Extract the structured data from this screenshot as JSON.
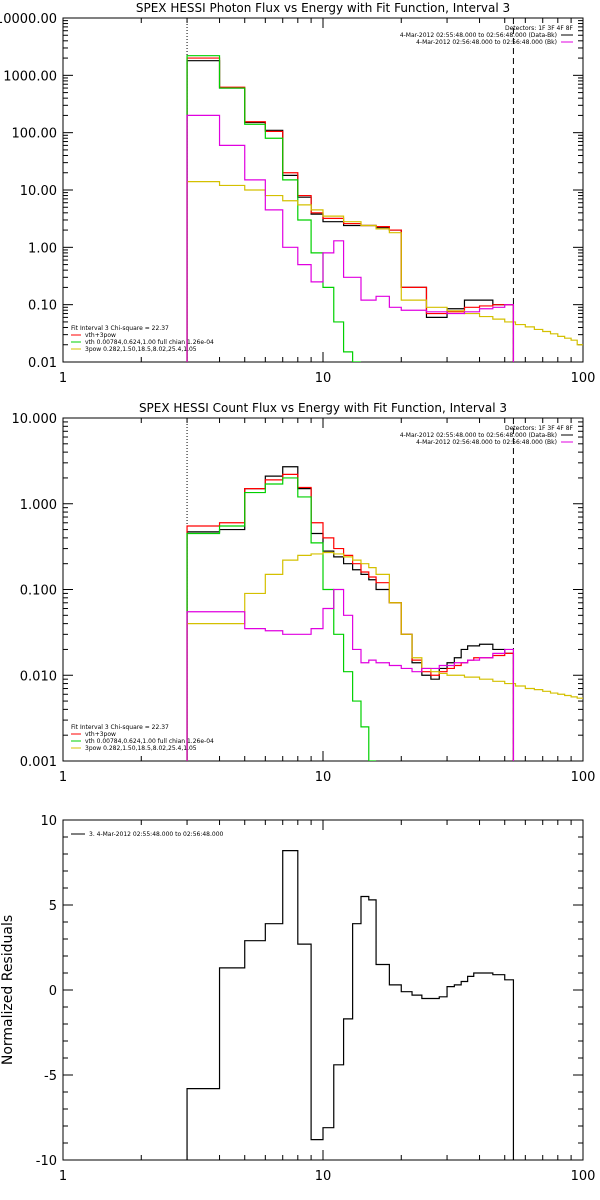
{
  "chart_data": [
    {
      "type": "line",
      "title": "SPEX HESSI Photon Flux vs Energy with Fit Function, Interval 3",
      "xlabel": "",
      "ylabel": "",
      "xscale": "log",
      "yscale": "log",
      "xlim": [
        1,
        100
      ],
      "ylim": [
        0.01,
        10000
      ],
      "xticks": [
        1,
        10,
        100
      ],
      "xtick_labels": [
        "1",
        "10",
        "100"
      ],
      "yticks": [
        0.01,
        0.1,
        1,
        10,
        100,
        1000,
        10000
      ],
      "ytick_labels": [
        "0.01",
        "0.10",
        "1.00",
        "10.00",
        "100.00",
        "1000.00",
        "10000.00"
      ],
      "grid": false,
      "vlines": [
        {
          "x": 3,
          "style": "dotted"
        },
        {
          "x": 54,
          "style": "dashed"
        }
      ],
      "legend_top_right": [
        "Detectors: 1F 3F 4F 8F",
        "4-Mar-2012 02:55:48.000 to 02:56:48.000 (Data-Bk)",
        "4-Mar-2012 02:56:48.000 to 02:56:48.000 (Bk)"
      ],
      "legend_bottom_left_title": "Fit Interval 3   Chi-square = 22.37",
      "legend_bottom_left": [
        "vth+3pow",
        "vth 0.00784,0.624,1.00  full chian 1.26e-04",
        "3pow 0.282,1.50,18.5,8.02,25.4,1.05"
      ],
      "series": [
        {
          "name": "Data-Bk",
          "color": "#000000",
          "edges": [
            3,
            4,
            5,
            6,
            7,
            8,
            9,
            10,
            12,
            14,
            16,
            18,
            20,
            25,
            30,
            35,
            40,
            45,
            50,
            54
          ],
          "values": [
            1800,
            600,
            150,
            110,
            18,
            7.5,
            3.8,
            2.8,
            2.4,
            2.4,
            2.2,
            2.0,
            0.2,
            0.06,
            0.085,
            0.12,
            0.12,
            0.1,
            0.1
          ]
        },
        {
          "name": "vth+3pow",
          "color": "#ff0000",
          "edges": [
            3,
            4,
            5,
            6,
            7,
            8,
            9,
            10,
            12,
            14,
            16,
            18,
            20,
            25,
            30,
            35,
            40,
            45,
            50,
            54
          ],
          "values": [
            2000,
            620,
            155,
            105,
            20,
            8,
            4,
            3.2,
            2.6,
            2.4,
            2.3,
            2.0,
            0.2,
            0.07,
            0.075,
            0.09,
            0.095,
            0.1,
            0.1
          ]
        },
        {
          "name": "vth",
          "color": "#00d000",
          "edges": [
            3,
            4,
            5,
            6,
            7,
            8,
            9,
            10,
            11,
            12,
            13,
            14
          ],
          "values": [
            2200,
            600,
            140,
            80,
            15,
            3,
            0.8,
            0.2,
            0.05,
            0.015,
            0.01
          ]
        },
        {
          "name": "3pow",
          "color": "#d4c000",
          "edges": [
            3,
            4,
            5,
            6,
            7,
            8,
            9,
            10,
            12,
            14,
            16,
            18,
            20,
            25,
            30,
            35,
            40,
            45,
            50,
            55,
            60,
            65,
            70,
            75,
            80,
            85,
            90,
            95,
            100
          ],
          "values": [
            14,
            12,
            10,
            8,
            6.5,
            5.5,
            4.5,
            3.5,
            2.8,
            2.4,
            2.1,
            1.8,
            0.12,
            0.09,
            0.078,
            0.07,
            0.062,
            0.056,
            0.05,
            0.045,
            0.041,
            0.037,
            0.034,
            0.031,
            0.028,
            0.026,
            0.024,
            0.02
          ]
        },
        {
          "name": "Bk",
          "color": "#e000e0",
          "edges": [
            3,
            4,
            5,
            6,
            7,
            8,
            9,
            10,
            11,
            12,
            14,
            16,
            18,
            20,
            25,
            30,
            35,
            40,
            45,
            50,
            54
          ],
          "values": [
            200,
            60,
            15,
            4.5,
            1,
            0.5,
            0.25,
            0.8,
            1.3,
            0.3,
            0.12,
            0.14,
            0.09,
            0.08,
            0.075,
            0.07,
            0.075,
            0.085,
            0.09,
            0.1
          ]
        }
      ]
    },
    {
      "type": "line",
      "title": "SPEX HESSI Count Flux vs Energy with Fit Function, Interval 3",
      "xlabel": "",
      "ylabel": "",
      "xscale": "log",
      "yscale": "log",
      "xlim": [
        1,
        100
      ],
      "ylim": [
        0.001,
        10
      ],
      "xticks": [
        1,
        10,
        100
      ],
      "xtick_labels": [
        "1",
        "10",
        "100"
      ],
      "yticks": [
        0.001,
        0.01,
        0.1,
        1,
        10
      ],
      "ytick_labels": [
        "0.001",
        "0.010",
        "0.100",
        "1.000",
        "10.000"
      ],
      "grid": false,
      "vlines": [
        {
          "x": 3,
          "style": "dotted"
        },
        {
          "x": 54,
          "style": "dashed"
        }
      ],
      "legend_top_right": [
        "Detectors: 1F 3F 4F 8F",
        "4-Mar-2012 02:55:48.000 to 02:56:48.000 (Data-Bk)",
        "4-Mar-2012 02:56:48.000 to 02:56:48.000 (Bk)"
      ],
      "legend_bottom_left_title": "Fit Interval 3   Chi-square = 22.37",
      "legend_bottom_left": [
        "vth+3pow",
        "vth 0.00784,0.624,1.00  full chian 1.26e-04",
        "3pow 0.282,1.50,18.5,8.02,25.4,1.05"
      ],
      "series": [
        {
          "name": "Data-Bk",
          "color": "#000000",
          "edges": [
            3,
            4,
            5,
            6,
            7,
            8,
            9,
            10,
            11,
            12,
            13,
            14,
            15,
            16,
            18,
            20,
            22,
            24,
            26,
            28,
            30,
            32,
            34,
            36,
            38,
            40,
            45,
            50,
            54
          ],
          "values": [
            0.47,
            0.5,
            1.5,
            2.1,
            2.7,
            1.5,
            0.45,
            0.28,
            0.24,
            0.2,
            0.17,
            0.15,
            0.13,
            0.1,
            0.07,
            0.03,
            0.014,
            0.01,
            0.009,
            0.012,
            0.014,
            0.016,
            0.02,
            0.022,
            0.022,
            0.023,
            0.02,
            0.018
          ]
        },
        {
          "name": "vth+3pow",
          "color": "#ff0000",
          "edges": [
            3,
            4,
            5,
            6,
            7,
            8,
            9,
            10,
            11,
            12,
            13,
            14,
            15,
            16,
            18,
            20,
            22,
            24,
            26,
            28,
            30,
            32,
            34,
            36,
            38,
            40,
            45,
            50,
            54
          ],
          "values": [
            0.55,
            0.6,
            1.5,
            1.9,
            2.2,
            1.55,
            0.6,
            0.4,
            0.3,
            0.25,
            0.2,
            0.16,
            0.14,
            0.12,
            0.07,
            0.03,
            0.015,
            0.011,
            0.01,
            0.011,
            0.012,
            0.013,
            0.014,
            0.015,
            0.016,
            0.016,
            0.017,
            0.018
          ]
        },
        {
          "name": "vth",
          "color": "#00d000",
          "edges": [
            3,
            4,
            5,
            6,
            7,
            8,
            9,
            10,
            11,
            12,
            13,
            14,
            15,
            16
          ],
          "values": [
            0.45,
            0.55,
            1.35,
            1.7,
            2.0,
            1.2,
            0.35,
            0.1,
            0.03,
            0.011,
            0.005,
            0.0025,
            0.001
          ]
        },
        {
          "name": "3pow",
          "color": "#d4c000",
          "edges": [
            3,
            4,
            5,
            6,
            7,
            8,
            9,
            10,
            11,
            12,
            13,
            14,
            15,
            16,
            18,
            20,
            22,
            24,
            26,
            28,
            30,
            35,
            40,
            45,
            50,
            55,
            60,
            65,
            70,
            75,
            80,
            85,
            90,
            95,
            100
          ],
          "values": [
            0.04,
            0.04,
            0.09,
            0.15,
            0.22,
            0.25,
            0.26,
            0.27,
            0.26,
            0.24,
            0.22,
            0.2,
            0.18,
            0.15,
            0.07,
            0.03,
            0.016,
            0.012,
            0.011,
            0.0105,
            0.01,
            0.0095,
            0.009,
            0.0085,
            0.008,
            0.0075,
            0.007,
            0.0068,
            0.0065,
            0.0062,
            0.006,
            0.0058,
            0.0056,
            0.0054
          ]
        },
        {
          "name": "Bk",
          "color": "#e000e0",
          "edges": [
            3,
            4,
            5,
            6,
            7,
            8,
            9,
            10,
            11,
            12,
            13,
            14,
            15,
            16,
            18,
            20,
            22,
            24,
            26,
            28,
            30,
            32,
            34,
            36,
            38,
            40,
            45,
            50,
            54
          ],
          "values": [
            0.055,
            0.055,
            0.035,
            0.033,
            0.03,
            0.03,
            0.035,
            0.06,
            0.1,
            0.05,
            0.02,
            0.014,
            0.015,
            0.014,
            0.013,
            0.012,
            0.011,
            0.012,
            0.012,
            0.013,
            0.013,
            0.014,
            0.014,
            0.015,
            0.015,
            0.016,
            0.018,
            0.02
          ]
        }
      ]
    },
    {
      "type": "line",
      "title": "",
      "xlabel": "",
      "ylabel": "Normalized Residuals",
      "xscale": "log",
      "yscale": "linear",
      "xlim": [
        1,
        100
      ],
      "ylim": [
        -10,
        10
      ],
      "xticks": [
        1,
        10,
        100
      ],
      "xtick_labels": [
        "1",
        "10",
        "100"
      ],
      "yticks": [
        -10,
        -5,
        0,
        5,
        10
      ],
      "ytick_labels": [
        "-10",
        "-5",
        "0",
        "5",
        "10"
      ],
      "grid": false,
      "legend_top_left": [
        "3.  4-Mar-2012 02:55:48.000 to 02:56:48.000"
      ],
      "series": [
        {
          "name": "3.  4-Mar-2012 02:55:48.000 to 02:56:48.000",
          "color": "#000000",
          "edges": [
            3,
            4,
            5,
            6,
            7,
            8,
            9,
            10,
            11,
            12,
            13,
            14,
            15,
            16,
            18,
            20,
            22,
            24,
            26,
            28,
            30,
            32,
            34,
            36,
            38,
            40,
            45,
            50,
            54
          ],
          "values": [
            -5.8,
            1.3,
            2.9,
            3.9,
            8.2,
            2.7,
            -8.8,
            -8.1,
            -4.4,
            -1.7,
            3.9,
            5.5,
            5.3,
            1.5,
            0.3,
            -0.1,
            -0.3,
            -0.5,
            -0.5,
            -0.4,
            0.2,
            0.3,
            0.5,
            0.8,
            1.0,
            1.0,
            0.9,
            0.6
          ]
        }
      ]
    }
  ]
}
